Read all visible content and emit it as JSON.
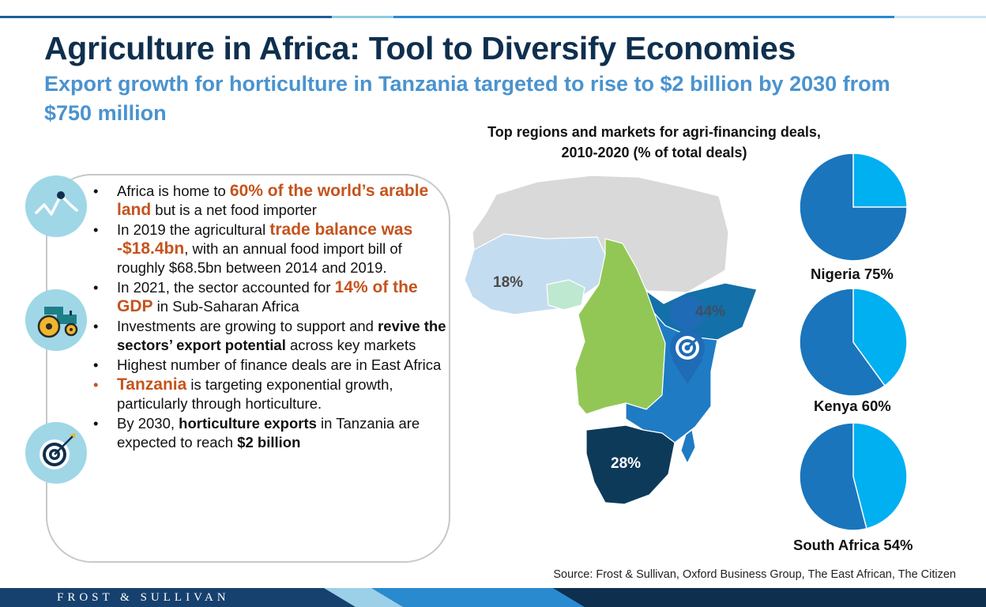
{
  "header": {
    "title": "Agriculture in Africa: Tool to Diversify Economies",
    "subtitle": "Export growth for horticulture in Tanzania targeted to rise to $2 billion by 2030 from $750 million"
  },
  "bullets": [
    {
      "parts": [
        {
          "t": "Africa is home to "
        },
        {
          "t": "60% of the world’s arable land",
          "hl": true
        },
        {
          "t": " but is a net food importer"
        }
      ]
    },
    {
      "parts": [
        {
          "t": "In 2019 the agricultural "
        },
        {
          "t": "trade balance was -$18.4bn",
          "hl": true
        },
        {
          "t": ", with an annual food import bill of roughly $68.5bn between 2014 and 2019."
        }
      ]
    },
    {
      "parts": [
        {
          "t": "In 2021, the sector accounted for "
        },
        {
          "t": "14% of the GDP",
          "hl": true
        },
        {
          "t": " in Sub-Saharan Africa"
        }
      ]
    },
    {
      "parts": [
        {
          "t": "Investments are growing to support and "
        },
        {
          "t": "revive the sectors’ export potential",
          "b": true
        },
        {
          "t": " across key markets"
        }
      ]
    },
    {
      "parts": [
        {
          "t": "Highest number of finance deals are in East Africa"
        }
      ]
    },
    {
      "orange": true,
      "parts": [
        {
          "t": "Tanzania",
          "hl": true
        },
        {
          "t": " is targeting exponential growth, particularly through horticulture."
        }
      ]
    },
    {
      "parts": [
        {
          "t": "By 2030, "
        },
        {
          "t": "horticulture exports",
          "b": true
        },
        {
          "t": " in Tanzania are expected to reach "
        },
        {
          "t": "$2 billion",
          "b": true
        }
      ]
    }
  ],
  "icons": [
    "trend-line-icon",
    "tractor-icon",
    "target-icon"
  ],
  "map": {
    "region_labels": [
      {
        "region": "West Africa",
        "value": "18%",
        "color": "#4a4a4a"
      },
      {
        "region": "East Africa",
        "value": "44%",
        "color": "#3d4f63"
      },
      {
        "region": "Southern Africa",
        "value": "28%",
        "color": "#ffffff"
      }
    ],
    "colors": {
      "west": "#c4dcf0",
      "nigeria": "#bfe8d0",
      "central": "#92c756",
      "east": "#1f7bc4",
      "horn": "#1470a8",
      "south": "#0e3a5a",
      "north": "#d9d9d9",
      "pin": "#1f6bb6"
    }
  },
  "chart_data": {
    "title": "Top regions and markets for agri-financing deals, 2010-2020  (% of total deals)",
    "type": "pie",
    "slices_color": {
      "value": "#1a75bc",
      "rest": "#00b0f0"
    },
    "charts": [
      {
        "label": "Nigeria 75%",
        "name": "Nigeria",
        "value": 75
      },
      {
        "label": "Kenya 60%",
        "name": "Kenya",
        "value": 60
      },
      {
        "label": "South Africa 54%",
        "name": "South Africa",
        "value": 54
      }
    ]
  },
  "source": "Source: Frost & Sullivan, Oxford Business Group, The East African, The Citizen",
  "footer": {
    "brand": "FROST & SULLIVAN"
  }
}
